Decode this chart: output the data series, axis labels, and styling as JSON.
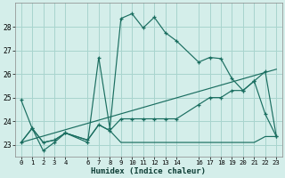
{
  "xlabel": "Humidex (Indice chaleur)",
  "background_color": "#d4eeea",
  "grid_color": "#a8d4ce",
  "line_color": "#1a6e60",
  "xlim": [
    -0.5,
    23.5
  ],
  "ylim": [
    22.5,
    29.0
  ],
  "yticks": [
    23,
    24,
    25,
    26,
    27,
    28
  ],
  "xticks": [
    0,
    1,
    2,
    3,
    4,
    6,
    7,
    8,
    9,
    10,
    11,
    12,
    13,
    14,
    16,
    17,
    18,
    19,
    20,
    21,
    22,
    23
  ],
  "series1_x": [
    0,
    1,
    2,
    3,
    4,
    6,
    7,
    8,
    9,
    10,
    11,
    12,
    13,
    14,
    16,
    17,
    18,
    19,
    20,
    21,
    22,
    23
  ],
  "series1_y": [
    24.9,
    23.7,
    22.75,
    23.1,
    23.5,
    23.1,
    26.7,
    23.7,
    28.35,
    28.55,
    27.95,
    28.4,
    27.75,
    27.4,
    26.5,
    26.7,
    26.65,
    25.8,
    25.3,
    25.7,
    24.3,
    23.35
  ],
  "series2_x": [
    0,
    1,
    2,
    3,
    4,
    6,
    7,
    8,
    9,
    10,
    11,
    12,
    13,
    14,
    16,
    17,
    18,
    19,
    20,
    21,
    22,
    23
  ],
  "series2_y": [
    23.1,
    23.7,
    23.1,
    23.2,
    23.5,
    23.2,
    23.85,
    23.6,
    23.1,
    23.1,
    23.1,
    23.1,
    23.1,
    23.1,
    23.1,
    23.1,
    23.1,
    23.1,
    23.1,
    23.1,
    23.35,
    23.35
  ],
  "series3_x": [
    0,
    23
  ],
  "series3_y": [
    23.1,
    26.2
  ],
  "series4_x": [
    0,
    1,
    2,
    3,
    4,
    6,
    7,
    8,
    9,
    10,
    11,
    12,
    13,
    14,
    16,
    17,
    18,
    19,
    20,
    21,
    22,
    23
  ],
  "series4_y": [
    23.1,
    23.7,
    23.1,
    23.2,
    23.5,
    23.2,
    23.85,
    23.6,
    24.1,
    24.1,
    24.1,
    24.1,
    24.1,
    24.1,
    24.7,
    25.0,
    25.0,
    25.3,
    25.3,
    25.7,
    26.1,
    23.35
  ],
  "series4_marker": true
}
